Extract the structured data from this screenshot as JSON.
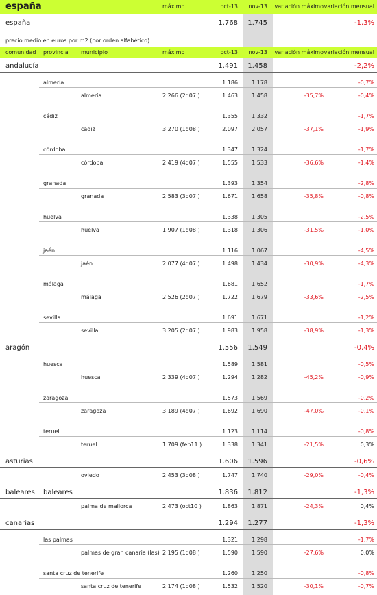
{
  "header": {
    "title": "españa",
    "columns": [
      "máximo",
      "oct-13",
      "nov-13",
      "variación máximo",
      "variación mensual"
    ]
  },
  "national": {
    "name": "españa",
    "oct": "1.768",
    "nov": "1.745",
    "var_mensual": "-1,3%"
  },
  "subtitle": "precio medio en euros por m2 (por orden alfabético)",
  "table": {
    "columns": [
      "comunidad",
      "provincia",
      "municipio",
      "máximo",
      "oct-13",
      "nov-13",
      "variación máximo",
      "variación mensual"
    ],
    "comunidades": [
      {
        "name": "andalucía",
        "oct": "1.491",
        "nov": "1.458",
        "var_mensual": "-2,2%",
        "provincias": [
          {
            "name": "almería",
            "oct": "1.186",
            "nov": "1.178",
            "var_mensual": "-0,7%",
            "municipios": [
              {
                "name": "almería",
                "maximo": "2.266 (2q07 )",
                "oct": "1.463",
                "nov": "1.458",
                "var_maximo": "-35,7%",
                "var_mensual": "-0,4%"
              }
            ]
          },
          {
            "name": "cádiz",
            "oct": "1.355",
            "nov": "1.332",
            "var_mensual": "-1,7%",
            "municipios": [
              {
                "name": "cádiz",
                "maximo": "3.270 (1q08 )",
                "oct": "2.097",
                "nov": "2.057",
                "var_maximo": "-37,1%",
                "var_mensual": "-1,9%"
              }
            ]
          },
          {
            "name": "córdoba",
            "oct": "1.347",
            "nov": "1.324",
            "var_mensual": "-1,7%",
            "municipios": [
              {
                "name": "córdoba",
                "maximo": "2.419 (4q07 )",
                "oct": "1.555",
                "nov": "1.533",
                "var_maximo": "-36,6%",
                "var_mensual": "-1,4%"
              }
            ]
          },
          {
            "name": "granada",
            "oct": "1.393",
            "nov": "1.354",
            "var_mensual": "-2,8%",
            "municipios": [
              {
                "name": "granada",
                "maximo": "2.583 (3q07 )",
                "oct": "1.671",
                "nov": "1.658",
                "var_maximo": "-35,8%",
                "var_mensual": "-0,8%"
              }
            ]
          },
          {
            "name": "huelva",
            "oct": "1.338",
            "nov": "1.305",
            "var_mensual": "-2,5%",
            "municipios": [
              {
                "name": "huelva",
                "maximo": "1.907 (1q08 )",
                "oct": "1.318",
                "nov": "1.306",
                "var_maximo": "-31,5%",
                "var_mensual": "-1,0%"
              }
            ]
          },
          {
            "name": "jaén",
            "oct": "1.116",
            "nov": "1.067",
            "var_mensual": "-4,5%",
            "municipios": [
              {
                "name": "jaén",
                "maximo": "2.077 (4q07 )",
                "oct": "1.498",
                "nov": "1.434",
                "var_maximo": "-30,9%",
                "var_mensual": "-4,3%"
              }
            ]
          },
          {
            "name": "málaga",
            "oct": "1.681",
            "nov": "1.652",
            "var_mensual": "-1,7%",
            "municipios": [
              {
                "name": "málaga",
                "maximo": "2.526 (2q07 )",
                "oct": "1.722",
                "nov": "1.679",
                "var_maximo": "-33,6%",
                "var_mensual": "-2,5%"
              }
            ]
          },
          {
            "name": "sevilla",
            "oct": "1.691",
            "nov": "1.671",
            "var_mensual": "-1,2%",
            "municipios": [
              {
                "name": "sevilla",
                "maximo": "3.205 (2q07 )",
                "oct": "1.983",
                "nov": "1.958",
                "var_maximo": "-38,9%",
                "var_mensual": "-1,3%"
              }
            ]
          }
        ]
      },
      {
        "name": "aragón",
        "oct": "1.556",
        "nov": "1.549",
        "var_mensual": "-0,4%",
        "provincias": [
          {
            "name": "huesca",
            "oct": "1.589",
            "nov": "1.581",
            "var_mensual": "-0,5%",
            "municipios": [
              {
                "name": "huesca",
                "maximo": "2.339 (4q07 )",
                "oct": "1.294",
                "nov": "1.282",
                "var_maximo": "-45,2%",
                "var_mensual": "-0,9%"
              }
            ]
          },
          {
            "name": "zaragoza",
            "oct": "1.573",
            "nov": "1.569",
            "var_mensual": "-0,2%",
            "municipios": [
              {
                "name": "zaragoza",
                "maximo": "3.189 (4q07 )",
                "oct": "1.692",
                "nov": "1.690",
                "var_maximo": "-47,0%",
                "var_mensual": "-0,1%"
              }
            ]
          },
          {
            "name": "teruel",
            "oct": "1.123",
            "nov": "1.114",
            "var_mensual": "-0,8%",
            "municipios": [
              {
                "name": "teruel",
                "maximo": "1.709 (feb11 )",
                "oct": "1.338",
                "nov": "1.341",
                "var_maximo": "-21,5%",
                "var_mensual": "0,3%"
              }
            ]
          }
        ]
      },
      {
        "name": "asturias",
        "oct": "1.606",
        "nov": "1.596",
        "var_mensual": "-0,6%",
        "municipios": [
          {
            "name": "oviedo",
            "maximo": "2.453 (3q08 )",
            "oct": "1.747",
            "nov": "1.740",
            "var_maximo": "-29,0%",
            "var_mensual": "-0,4%"
          }
        ]
      },
      {
        "name": "baleares",
        "provincia": "baleares",
        "oct": "1.836",
        "nov": "1.812",
        "var_mensual": "-1,3%",
        "municipios": [
          {
            "name": "palma de mallorca",
            "maximo": "2.473 (oct10 )",
            "oct": "1.863",
            "nov": "1.871",
            "var_maximo": "-24,3%",
            "var_mensual": "0,4%"
          }
        ]
      },
      {
        "name": "canarias",
        "oct": "1.294",
        "nov": "1.277",
        "var_mensual": "-1,3%",
        "provincias": [
          {
            "name": "las palmas",
            "oct": "1.321",
            "nov": "1.298",
            "var_mensual": "-1,7%",
            "municipios": [
              {
                "name": "palmas de gran canaria (las)",
                "maximo": "2.195 (1q08 )",
                "oct": "1.590",
                "nov": "1.590",
                "var_maximo": "-27,6%",
                "var_mensual": "0,0%"
              }
            ]
          },
          {
            "name": "santa cruz de tenerife",
            "oct": "1.260",
            "nov": "1.250",
            "var_mensual": "-0,8%",
            "municipios": [
              {
                "name": "santa cruz de tenerife",
                "maximo": "2.174 (1q08 )",
                "oct": "1.532",
                "nov": "1.520",
                "var_maximo": "-30,1%",
                "var_mensual": "-0,7%"
              }
            ]
          }
        ]
      }
    ]
  }
}
